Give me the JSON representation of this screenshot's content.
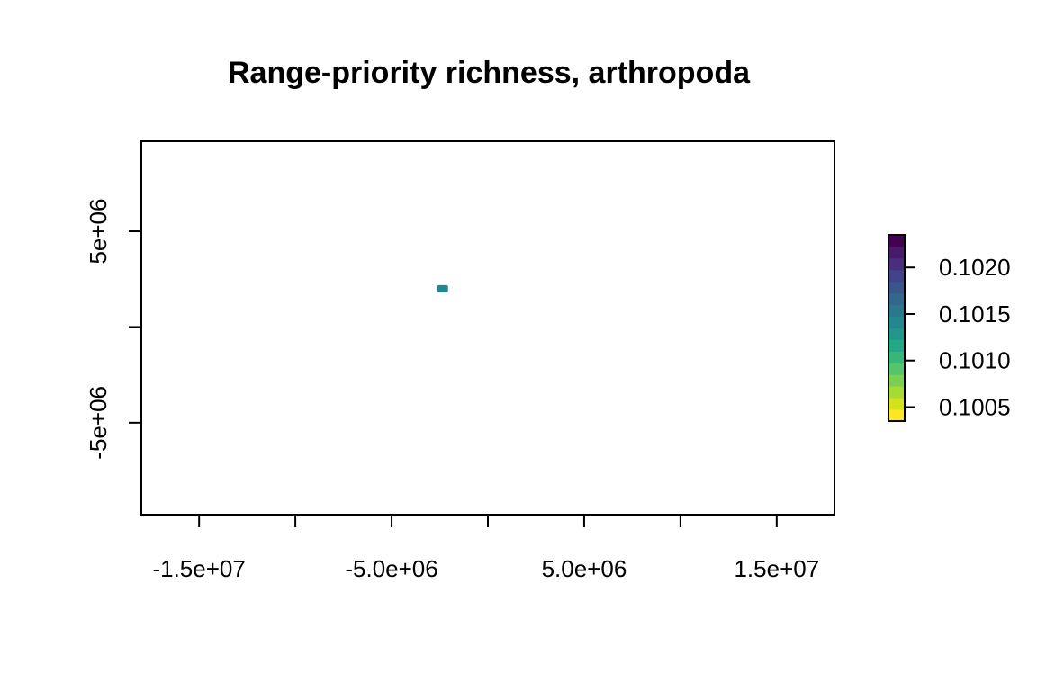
{
  "chart_data": {
    "type": "heatmap",
    "title": "Range-priority richness, arthropoda",
    "xlabel": "",
    "ylabel": "",
    "xlim": [
      -18000000,
      18000000
    ],
    "ylim": [
      -9800000,
      9700000
    ],
    "x_ticks": [
      {
        "value": -15000000,
        "label": "-1.5e+07"
      },
      {
        "value": -10000000,
        "label": ""
      },
      {
        "value": -5000000,
        "label": "-5.0e+06"
      },
      {
        "value": 0,
        "label": ""
      },
      {
        "value": 5000000,
        "label": "5.0e+06"
      },
      {
        "value": 10000000,
        "label": ""
      },
      {
        "value": 15000000,
        "label": "1.5e+07"
      }
    ],
    "y_ticks": [
      {
        "value": -5000000,
        "label": "-5e+06"
      },
      {
        "value": 0,
        "label": ""
      },
      {
        "value": 5000000,
        "label": "5e+06"
      }
    ],
    "points": [
      {
        "x": -2350000,
        "y": 2000000,
        "value": 0.10135
      }
    ],
    "legend": {
      "position": "right",
      "min": 0.10035,
      "max": 0.10235,
      "ticks": [
        {
          "value": 0.102,
          "label": "0.1020"
        },
        {
          "value": 0.1015,
          "label": "0.1015"
        },
        {
          "value": 0.101,
          "label": "0.1010"
        },
        {
          "value": 0.1005,
          "label": "0.1005"
        }
      ],
      "colors": [
        "#FDE725",
        "#D2E21B",
        "#A5DB36",
        "#7AD151",
        "#54C568",
        "#35B779",
        "#22A884",
        "#1F988B",
        "#23888E",
        "#2A788E",
        "#31688E",
        "#39568C",
        "#414487",
        "#472F7D",
        "#481A6C",
        "#440154"
      ]
    },
    "grid": false
  }
}
